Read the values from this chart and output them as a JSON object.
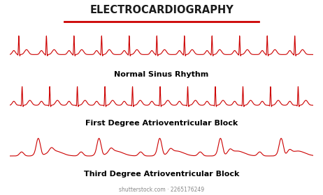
{
  "title": "ELECTROCARDIOGRAPHY",
  "title_color": "#1a1a1a",
  "underline_color": "#cc0000",
  "ecg_color": "#cc0000",
  "bg_color": "#ffffff",
  "labels": [
    "Normal Sinus Rhythm",
    "First Degree Atrioventricular Block",
    "Third Degree Atrioventricular Block"
  ],
  "label_fontsize": 8.0,
  "title_fontsize": 10.5,
  "watermark": "shutterstock.com · 2265176249",
  "lw": 0.8
}
